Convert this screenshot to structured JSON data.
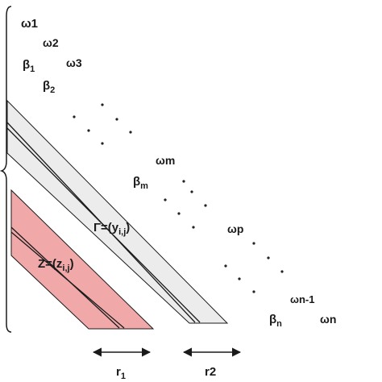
{
  "labels": {
    "omega1": "ω1",
    "omega2": "ω2",
    "beta1": "β",
    "beta1_sub": "1",
    "omega3": "ω3",
    "beta2": "β",
    "beta2_sub": "2",
    "omegam": "ωm",
    "betam": "β",
    "betam_sub": "m",
    "omegap": "ωp",
    "omegan1": "ωn-1",
    "betan": "β",
    "betan_sub": "n",
    "omegan": "ωn",
    "gamma_pre": "Γ=(y",
    "gamma_sub": "i,j",
    "gamma_post": ")",
    "z_pre": "Z=(z",
    "z_sub": "i,j",
    "z_post": ")",
    "r1_pre": "r",
    "r1_sub": "1",
    "r2": "r2"
  },
  "colors": {
    "gamma_band": "#ececec",
    "z_band": "#f0a8a8",
    "stroke": "#1a1a1a"
  }
}
